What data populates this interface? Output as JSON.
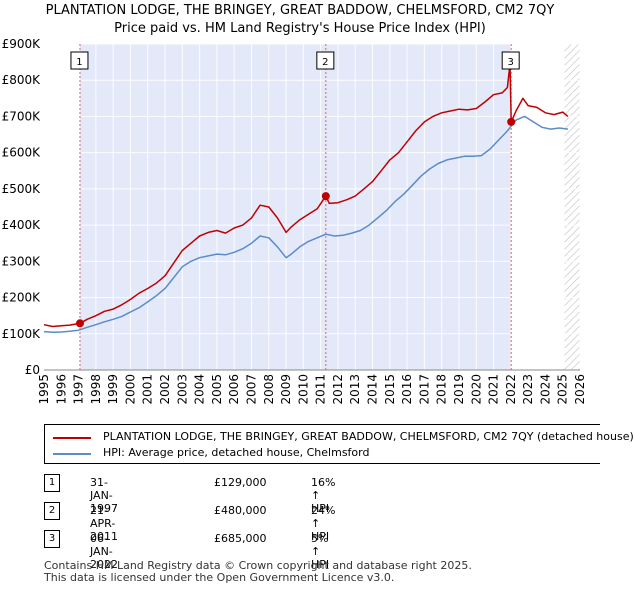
{
  "chart_data": {
    "type": "line",
    "title": "PLANTATION LODGE, THE BRINGEY, GREAT BADDOW, CHELMSFORD, CM2 7QY",
    "subtitle": "Price paid vs. HM Land Registry's House Price Index (HPI)",
    "xlabel": "",
    "ylabel": "",
    "xlim": [
      1995,
      2026
    ],
    "ylim": [
      0,
      900000
    ],
    "x_ticks": [
      "1995",
      "1996",
      "1997",
      "1998",
      "1999",
      "2000",
      "2001",
      "2002",
      "2003",
      "2004",
      "2005",
      "2006",
      "2007",
      "2008",
      "2009",
      "2010",
      "2011",
      "2012",
      "2013",
      "2014",
      "2015",
      "2016",
      "2017",
      "2018",
      "2019",
      "2020",
      "2021",
      "2022",
      "2023",
      "2024",
      "2025",
      "2026"
    ],
    "y_ticks": [
      {
        "value": 0,
        "label": "£0"
      },
      {
        "value": 100000,
        "label": "£100K"
      },
      {
        "value": 200000,
        "label": "£200K"
      },
      {
        "value": 300000,
        "label": "£300K"
      },
      {
        "value": 400000,
        "label": "£400K"
      },
      {
        "value": 500000,
        "label": "£500K"
      },
      {
        "value": 600000,
        "label": "£600K"
      },
      {
        "value": 700000,
        "label": "£700K"
      },
      {
        "value": 800000,
        "label": "£800K"
      },
      {
        "value": 900000,
        "label": "£900K"
      }
    ],
    "series": [
      {
        "name": "PLANTATION LODGE, THE BRINGEY, GREAT BADDOW, CHELMSFORD, CM2 7QY (detached house)",
        "color": "#c00000",
        "x": [
          1995.0,
          1995.5,
          1996.0,
          1996.5,
          1997.08,
          1997.5,
          1998.0,
          1998.5,
          1999.0,
          1999.5,
          2000.0,
          2000.5,
          2001.0,
          2001.5,
          2002.0,
          2002.5,
          2003.0,
          2003.5,
          2004.0,
          2004.5,
          2005.0,
          2005.5,
          2006.0,
          2006.5,
          2007.0,
          2007.5,
          2008.0,
          2008.5,
          2009.0,
          2009.3,
          2009.8,
          2010.3,
          2010.8,
          2011.3,
          2011.5,
          2012.0,
          2012.5,
          2013.0,
          2013.5,
          2014.0,
          2014.5,
          2015.0,
          2015.5,
          2016.0,
          2016.5,
          2017.0,
          2017.5,
          2018.0,
          2018.5,
          2019.0,
          2019.5,
          2020.0,
          2020.5,
          2021.0,
          2021.5,
          2021.8,
          2021.95,
          2022.02,
          2022.3,
          2022.7,
          2023.0,
          2023.5,
          2024.0,
          2024.5,
          2025.0,
          2025.3
        ],
        "values": [
          125000,
          120000,
          122000,
          124000,
          129000,
          140000,
          150000,
          162000,
          168000,
          180000,
          195000,
          212000,
          225000,
          240000,
          260000,
          295000,
          330000,
          350000,
          370000,
          380000,
          385000,
          378000,
          392000,
          400000,
          420000,
          455000,
          450000,
          420000,
          380000,
          395000,
          415000,
          430000,
          445000,
          480000,
          460000,
          462000,
          470000,
          480000,
          500000,
          520000,
          550000,
          580000,
          600000,
          630000,
          660000,
          685000,
          700000,
          710000,
          715000,
          720000,
          718000,
          722000,
          740000,
          760000,
          765000,
          780000,
          845000,
          685000,
          715000,
          750000,
          730000,
          725000,
          710000,
          705000,
          712000,
          700000
        ]
      },
      {
        "name": "HPI: Average price, detached house, Chelmsford",
        "color": "#5b8cc8",
        "x": [
          1995.0,
          1995.5,
          1996.0,
          1996.5,
          1997.0,
          1997.5,
          1998.0,
          1998.5,
          1999.0,
          1999.5,
          2000.0,
          2000.5,
          2001.0,
          2001.5,
          2002.0,
          2002.5,
          2003.0,
          2003.5,
          2004.0,
          2004.5,
          2005.0,
          2005.5,
          2006.0,
          2006.5,
          2007.0,
          2007.5,
          2008.0,
          2008.5,
          2009.0,
          2009.3,
          2009.8,
          2010.3,
          2010.8,
          2011.3,
          2011.8,
          2012.3,
          2012.8,
          2013.3,
          2013.8,
          2014.3,
          2014.8,
          2015.3,
          2015.8,
          2016.3,
          2016.8,
          2017.3,
          2017.8,
          2018.3,
          2018.8,
          2019.3,
          2019.8,
          2020.3,
          2020.8,
          2021.3,
          2021.8,
          2022.3,
          2022.8,
          2023.3,
          2023.8,
          2024.3,
          2024.8,
          2025.3
        ],
        "values": [
          106000,
          104000,
          105000,
          107000,
          110000,
          118000,
          125000,
          133000,
          140000,
          148000,
          160000,
          172000,
          188000,
          205000,
          225000,
          255000,
          285000,
          300000,
          310000,
          315000,
          320000,
          318000,
          325000,
          335000,
          350000,
          370000,
          365000,
          340000,
          310000,
          320000,
          340000,
          355000,
          365000,
          375000,
          370000,
          372000,
          378000,
          385000,
          400000,
          420000,
          440000,
          465000,
          485000,
          510000,
          535000,
          555000,
          570000,
          580000,
          585000,
          590000,
          590000,
          592000,
          610000,
          635000,
          660000,
          690000,
          700000,
          685000,
          670000,
          665000,
          668000,
          665000
        ]
      }
    ],
    "sales": [
      {
        "id": "1",
        "x": 1997.08,
        "value": 129000
      },
      {
        "id": "2",
        "x": 2011.3,
        "value": 480000
      },
      {
        "id": "3",
        "x": 2022.02,
        "value": 685000
      }
    ]
  },
  "legend": {
    "property_label": "PLANTATION LODGE, THE BRINGEY, GREAT BADDOW, CHELMSFORD, CM2 7QY (detached house)",
    "hpi_label": "HPI: Average price, detached house, Chelmsford"
  },
  "sales_table": [
    {
      "id": "1",
      "date": "31-JAN-1997",
      "price": "£129,000",
      "hpi": "16% ↑ HPI"
    },
    {
      "id": "2",
      "date": "21-APR-2011",
      "price": "£480,000",
      "hpi": "24% ↑ HPI"
    },
    {
      "id": "3",
      "date": "06-JAN-2022",
      "price": "£685,000",
      "hpi": "5% ↑ HPI"
    }
  ],
  "footer": {
    "line1": "Contains HM Land Registry data © Crown copyright and database right 2025.",
    "line2": "This data is licensed under the Open Government Licence v3.0."
  },
  "colors": {
    "property": "#c00000",
    "hpi": "#5b8cc8",
    "shade": "#e4e9fa",
    "hatch": "#bbbbbb",
    "vline": "#e06060"
  }
}
